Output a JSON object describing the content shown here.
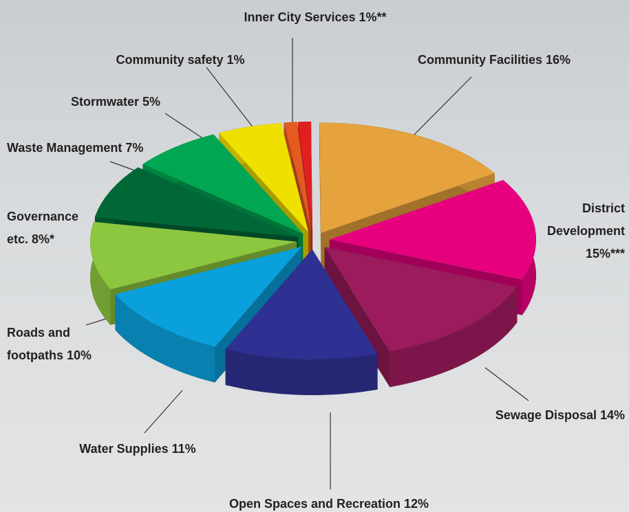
{
  "chart_data": {
    "type": "pie",
    "categories": [
      "Inner City Services 1%**",
      "Community Facilities 16%",
      "District Development 15%***",
      "Sewage Disposal 14%",
      "Open Spaces and Recreation 12%",
      "Water Supplies 11%",
      "Roads and footpaths 10%",
      "Governance etc. 8%*",
      "Waste Management 7%",
      "Stormwater 5%",
      "Community safety 1%"
    ],
    "values": [
      1,
      16,
      15,
      14,
      12,
      11,
      10,
      8,
      7,
      5,
      1
    ],
    "colors": [
      "#e0201f",
      "#e6a23c",
      "#e6007e",
      "#9b1b5c",
      "#2e3192",
      "#0aa0dc",
      "#8dc63f",
      "#006837",
      "#00a651",
      "#f0e000",
      "#e55a20"
    ]
  }
}
